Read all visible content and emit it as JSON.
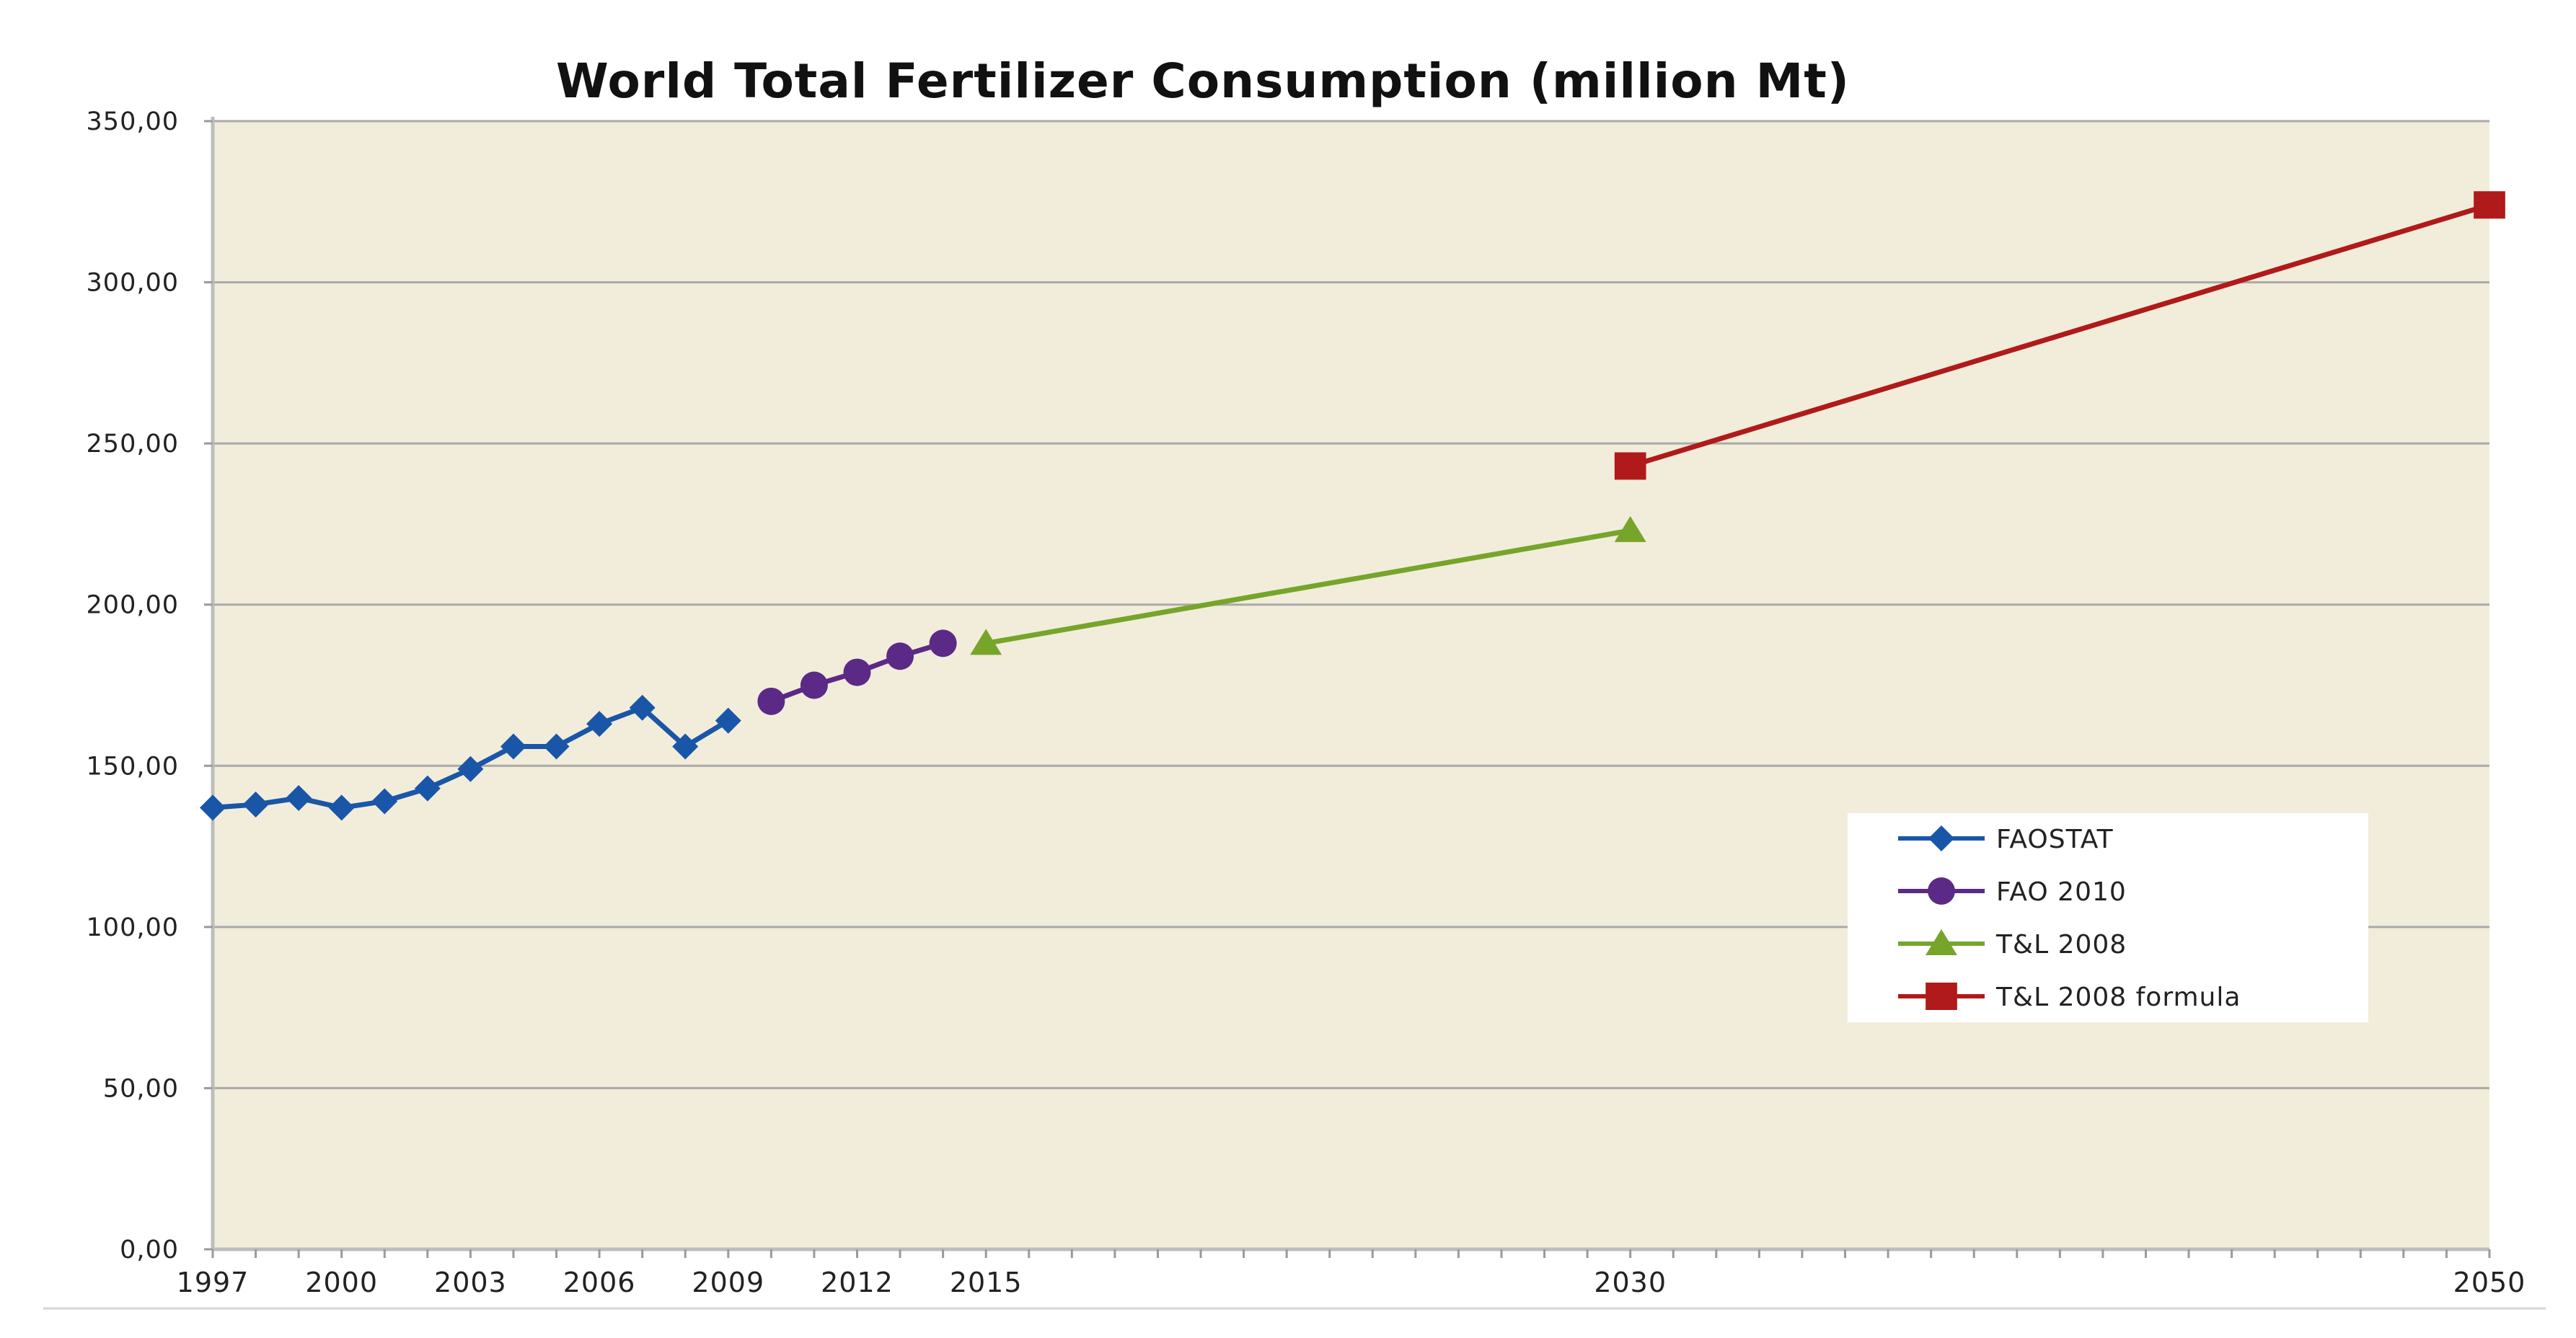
{
  "chart_data": {
    "type": "line",
    "title": "World Total Fertilizer Consumption (million Mt)",
    "xlabel": "",
    "ylabel": "",
    "ylim": [
      0,
      350
    ],
    "xlim": [
      1997,
      2050
    ],
    "y_ticks": [
      "0,00",
      "50,00",
      "100,00",
      "150,00",
      "200,00",
      "250,00",
      "300,00",
      "350,00"
    ],
    "x_tick_labels": [
      {
        "year": 1997,
        "label": "1997"
      },
      {
        "year": 2000,
        "label": "2000"
      },
      {
        "year": 2003,
        "label": "2003"
      },
      {
        "year": 2006,
        "label": "2006"
      },
      {
        "year": 2009,
        "label": "2009"
      },
      {
        "year": 2012,
        "label": "2012"
      },
      {
        "year": 2015,
        "label": "2015"
      },
      {
        "year": 2030,
        "label": "2030"
      },
      {
        "year": 2050,
        "label": "2050"
      }
    ],
    "grid": true,
    "legend_position": "right",
    "background_color": "#f2eddb",
    "series": [
      {
        "name": "FAOSTAT",
        "color": "#1a56a8",
        "marker": "diamond",
        "points": [
          {
            "x": 1997,
            "y": 137
          },
          {
            "x": 1998,
            "y": 138
          },
          {
            "x": 1999,
            "y": 140
          },
          {
            "x": 2000,
            "y": 137
          },
          {
            "x": 2001,
            "y": 139
          },
          {
            "x": 2002,
            "y": 143
          },
          {
            "x": 2003,
            "y": 149
          },
          {
            "x": 2004,
            "y": 156
          },
          {
            "x": 2005,
            "y": 156
          },
          {
            "x": 2006,
            "y": 163
          },
          {
            "x": 2007,
            "y": 168
          },
          {
            "x": 2008,
            "y": 156
          },
          {
            "x": 2009,
            "y": 164
          }
        ]
      },
      {
        "name": "FAO 2010",
        "color": "#5b2a86",
        "marker": "circle",
        "points": [
          {
            "x": 2010,
            "y": 170
          },
          {
            "x": 2011,
            "y": 175
          },
          {
            "x": 2012,
            "y": 179
          },
          {
            "x": 2013,
            "y": 184
          },
          {
            "x": 2014,
            "y": 188
          }
        ]
      },
      {
        "name": "T&L 2008",
        "color": "#76a52a",
        "marker": "triangle",
        "points": [
          {
            "x": 2015,
            "y": 188
          },
          {
            "x": 2030,
            "y": 223
          }
        ]
      },
      {
        "name": "T&L 2008 formula",
        "color": "#b01a1a",
        "marker": "square",
        "points": [
          {
            "x": 2030,
            "y": 243
          },
          {
            "x": 2050,
            "y": 324
          }
        ]
      }
    ]
  }
}
